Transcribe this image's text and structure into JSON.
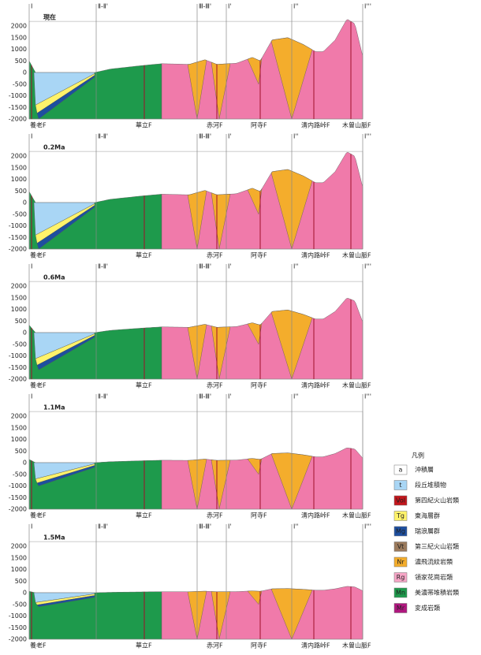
{
  "panels": [
    {
      "age": "現在"
    },
    {
      "age": "0.2Ma"
    },
    {
      "age": "0.6Ma"
    },
    {
      "age": "1.1Ma"
    },
    {
      "age": "1.5Ma"
    }
  ],
  "y_ticks": [
    "2000",
    "1500",
    "1000",
    "500",
    "0",
    "-500",
    "-1000",
    "-1500",
    "-2000"
  ],
  "section_markers": [
    "Ⅰ",
    "Ⅱ-Ⅱ'",
    "Ⅲ-Ⅲ'",
    "Ⅰ'",
    "Ⅰ''",
    "Ⅰ'''"
  ],
  "faults": [
    "養老F",
    "華立F",
    "赤河F",
    "阿寺F",
    "清内路峠F",
    "木曽山脈F"
  ],
  "legend": {
    "title": "凡例",
    "items": [
      {
        "code": "a",
        "name": "沖積層"
      },
      {
        "code": "t",
        "name": "段丘堆積物"
      },
      {
        "code": "Vol",
        "name": "第四紀火山岩類"
      },
      {
        "code": "Tg",
        "name": "東海層群"
      },
      {
        "code": "Mg",
        "name": "瑞浪層群"
      },
      {
        "code": "Vt",
        "name": "第三紀火山岩類"
      },
      {
        "code": "Nr",
        "name": "濃飛流紋岩類"
      },
      {
        "code": "Rg",
        "name": "領家花崗岩類"
      },
      {
        "code": "Mn",
        "name": "美濃帯堆積岩類"
      },
      {
        "code": "Mr",
        "name": "変成岩類"
      }
    ]
  }
}
